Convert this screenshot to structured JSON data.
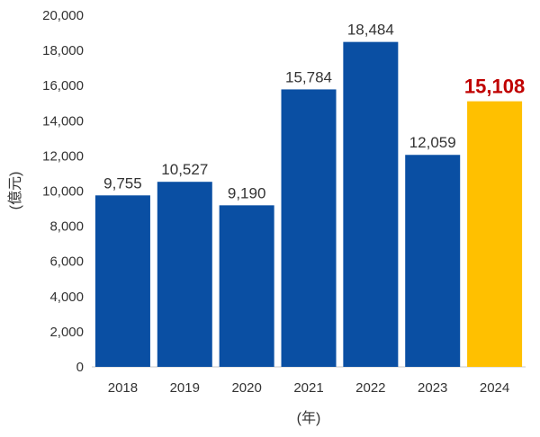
{
  "chart_data": {
    "type": "bar",
    "categories": [
      "2018",
      "2019",
      "2020",
      "2021",
      "2022",
      "2023",
      "2024"
    ],
    "values": [
      9755,
      10527,
      9190,
      15784,
      18484,
      12059,
      15108
    ],
    "data_labels": [
      "9,755",
      "10,527",
      "9,190",
      "15,784",
      "18,484",
      "12,059",
      "15,108"
    ],
    "highlight_index": 6,
    "y_ticks": [
      "0",
      "2,000",
      "4,000",
      "6,000",
      "8,000",
      "10,000",
      "12,000",
      "14,000",
      "16,000",
      "18,000",
      "20,000"
    ],
    "xlabel": "(年)",
    "ylabel": "(億元)",
    "ylim": [
      0,
      20000
    ],
    "grid": false,
    "legend": "none"
  },
  "colors": {
    "bar": "#0a4fa3",
    "highlight_bar": "#ffc000",
    "highlight_label": "#c00000",
    "axis": "#c8c8c8",
    "text": "#333333"
  }
}
